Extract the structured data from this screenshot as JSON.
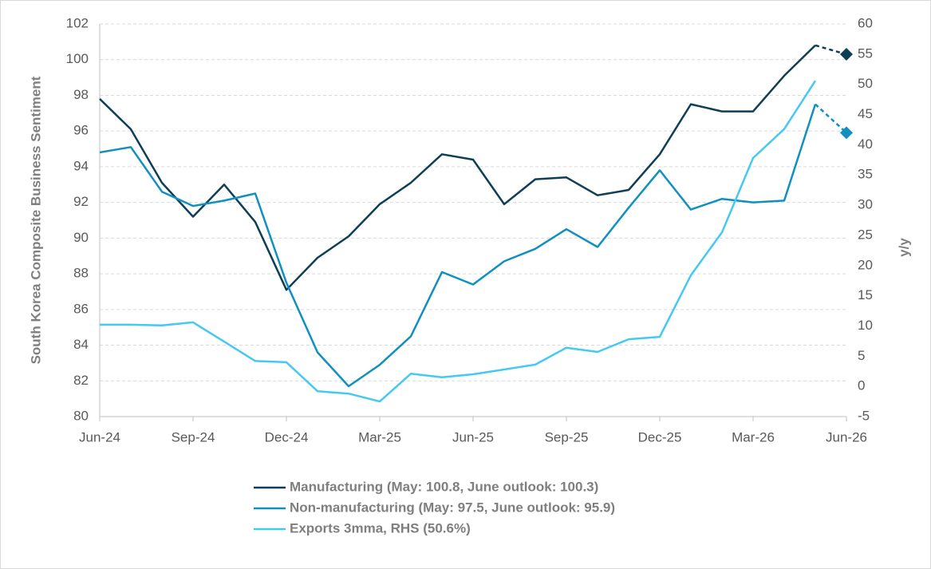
{
  "chart_data": {
    "type": "line",
    "categories": [
      "Jun-24",
      null,
      null,
      "Sep-24",
      null,
      null,
      "Dec-24",
      null,
      null,
      "Mar-25",
      null,
      null,
      "Jun-25",
      null,
      null,
      "Sep-25",
      null,
      null,
      "Dec-25",
      null,
      null,
      "Mar-26",
      null,
      null,
      "Jun-26"
    ],
    "y_label": "South Korea Composite Business Sentiment",
    "y2_label": "y/y",
    "ylim": [
      80,
      102
    ],
    "yticks": [
      80,
      82,
      84,
      86,
      88,
      90,
      92,
      94,
      96,
      98,
      100,
      102
    ],
    "y2lim": [
      -5,
      60
    ],
    "y2ticks": [
      -5,
      0,
      5,
      10,
      15,
      20,
      25,
      30,
      35,
      40,
      45,
      50,
      55,
      60
    ],
    "grid": true,
    "legend": "bottom",
    "series": [
      {
        "name": "Manufacturing (May: 100.8, June outlook: 100.3)",
        "color": "#0e3f55",
        "outlook": true,
        "values": [
          97.8,
          96.1,
          93.1,
          91.2,
          93.0,
          90.9,
          87.1,
          88.9,
          90.1,
          91.9,
          93.1,
          94.7,
          94.4,
          91.9,
          93.3,
          93.4,
          92.4,
          92.7,
          94.7,
          97.5,
          97.1,
          97.1,
          99.1,
          100.8,
          100.3
        ]
      },
      {
        "name": "Non-manufacturing (May: 97.5, June outlook: 95.9)",
        "color": "#1190c0",
        "outlook": true,
        "values": [
          94.8,
          95.1,
          92.6,
          91.8,
          92.1,
          92.5,
          87.5,
          83.6,
          81.7,
          82.9,
          84.5,
          88.1,
          87.4,
          88.7,
          89.4,
          90.5,
          89.5,
          91.7,
          93.8,
          91.6,
          92.2,
          92.0,
          92.1,
          97.5,
          95.9
        ]
      },
      {
        "name": "Exports 3mma, RHS (50.6%)",
        "color": "#45c9f2",
        "axis": "y2",
        "values": [
          10.2,
          10.2,
          10.1,
          10.6,
          7.4,
          4.2,
          4.0,
          -0.8,
          -1.2,
          -2.5,
          2.1,
          1.5,
          2.0,
          2.8,
          3.6,
          6.4,
          5.7,
          7.8,
          8.2,
          18.4,
          25.5,
          37.8,
          42.6,
          50.6,
          null
        ]
      }
    ]
  }
}
